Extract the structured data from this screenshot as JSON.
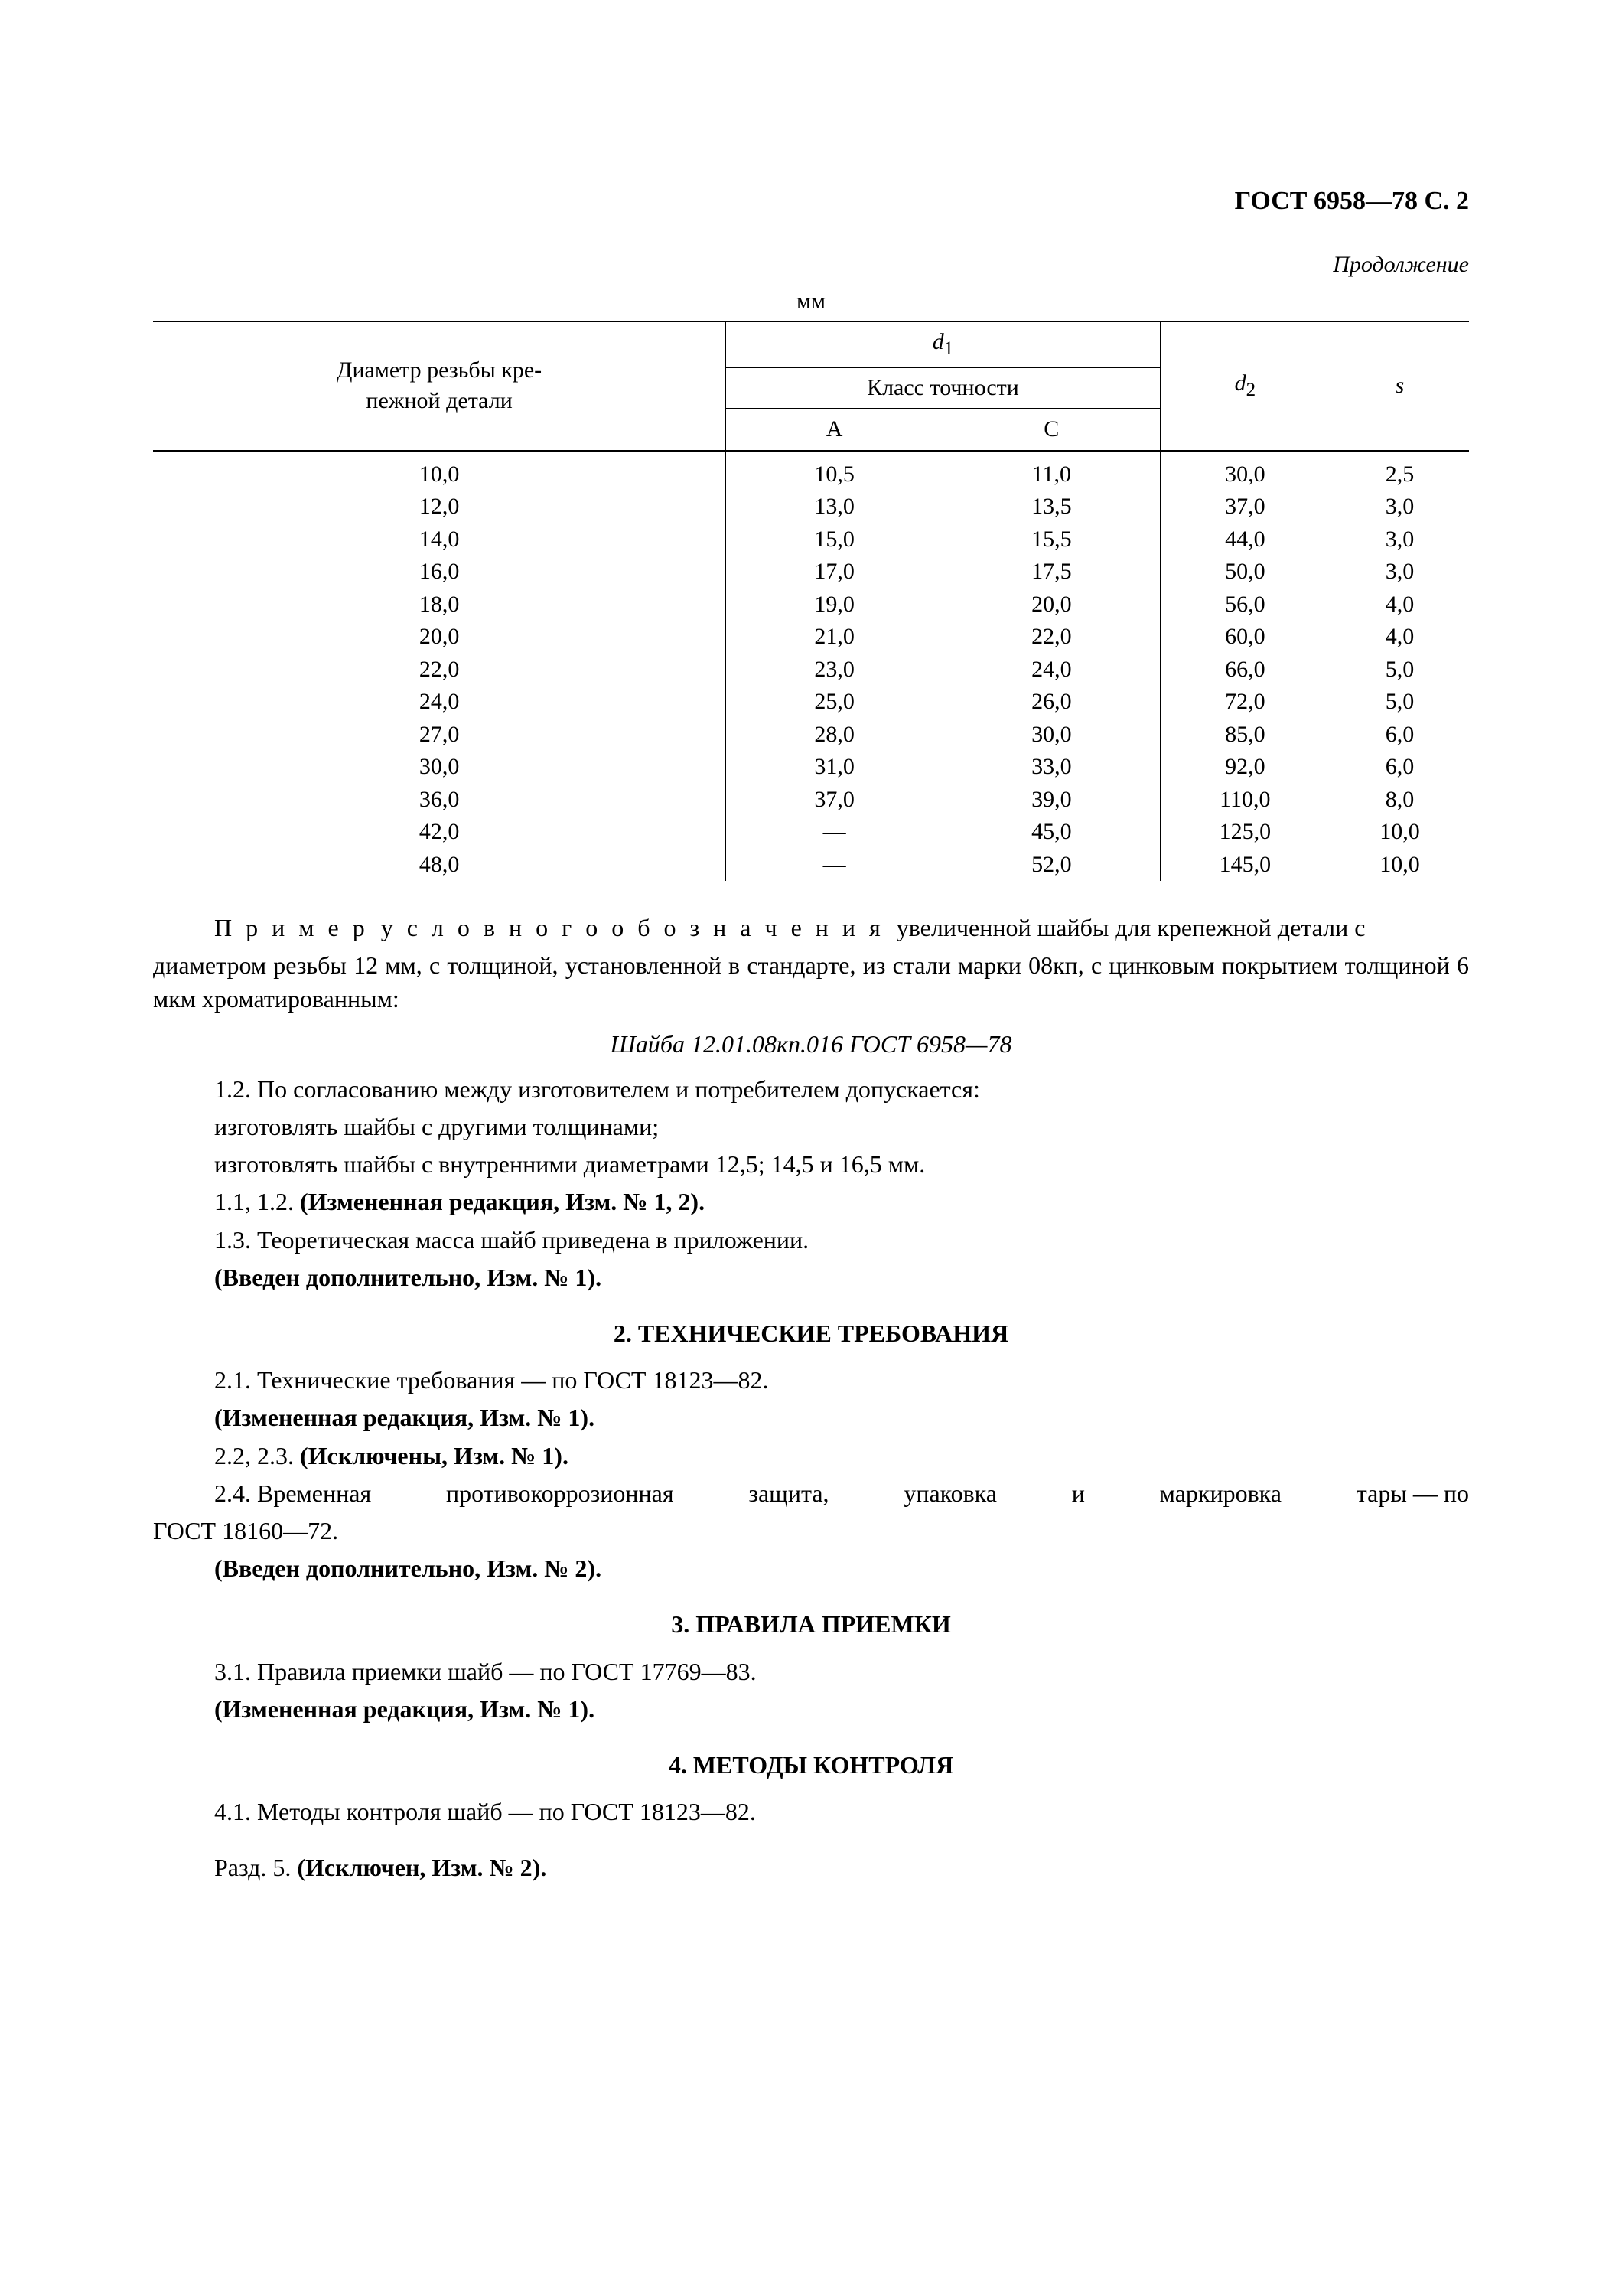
{
  "header": "ГОСТ 6958—78 С. 2",
  "continuation_label": "Продолжение",
  "table": {
    "unit": "мм",
    "col_diameter_1": "Диаметр резьбы кре-",
    "col_diameter_2": "пежной детали",
    "col_d1": "d",
    "col_d1_sub": "1",
    "col_d2": "d",
    "col_d2_sub": "2",
    "col_s": "s",
    "col_class": "Класс точности",
    "col_A": "А",
    "col_C": "С",
    "rows": [
      {
        "diam": "10,0",
        "a": "10,5",
        "c": "11,0",
        "d2": "30,0",
        "s": "2,5"
      },
      {
        "diam": "12,0",
        "a": "13,0",
        "c": "13,5",
        "d2": "37,0",
        "s": "3,0"
      },
      {
        "diam": "14,0",
        "a": "15,0",
        "c": "15,5",
        "d2": "44,0",
        "s": "3,0"
      },
      {
        "diam": "16,0",
        "a": "17,0",
        "c": "17,5",
        "d2": "50,0",
        "s": "3,0"
      },
      {
        "diam": "18,0",
        "a": "19,0",
        "c": "20,0",
        "d2": "56,0",
        "s": "4,0"
      },
      {
        "diam": "20,0",
        "a": "21,0",
        "c": "22,0",
        "d2": "60,0",
        "s": "4,0"
      },
      {
        "diam": "22,0",
        "a": "23,0",
        "c": "24,0",
        "d2": "66,0",
        "s": "5,0"
      },
      {
        "diam": "24,0",
        "a": "25,0",
        "c": "26,0",
        "d2": "72,0",
        "s": "5,0"
      },
      {
        "diam": "27,0",
        "a": "28,0",
        "c": "30,0",
        "d2": "85,0",
        "s": "6,0"
      },
      {
        "diam": "30,0",
        "a": "31,0",
        "c": "33,0",
        "d2": "92,0",
        "s": "6,0"
      },
      {
        "diam": "36,0",
        "a": "37,0",
        "c": "39,0",
        "d2": "110,0",
        "s": "8,0"
      },
      {
        "diam": "42,0",
        "a": "—",
        "c": "45,0",
        "d2": "125,0",
        "s": "10,0"
      },
      {
        "diam": "48,0",
        "a": "—",
        "c": "52,0",
        "d2": "145,0",
        "s": "10,0"
      }
    ]
  },
  "body": {
    "example_word": "П р и м е р",
    "designation_word": "у с л о в н о г о   о б о з н а ч е н и я",
    "example_rest1": "увеличенной шайбы для крепежной детали с",
    "example_line2": "диаметром резьбы 12 мм, с толщиной, установленной в стандарте, из стали марки 08кп, с цинковым покрытием толщиной 6 мкм хроматированным:",
    "example_designation": "Шайба 12.01.08кп.016 ГОСТ 6958—78",
    "p1_2_line1": "1.2. По согласованию между изготовителем и потребителем допускается:",
    "p1_2_line2": "изготовлять шайбы с другими толщинами;",
    "p1_2_line3": "изготовлять шайбы с внутренними диаметрами 12,5; 14,5 и 16,5 мм.",
    "p1_1_1_2_prefix": "1.1, 1.2. ",
    "p1_1_1_2_bold": "(Измененная редакция, Изм. № 1, 2).",
    "p1_3": "1.3. Теоретическая масса шайб приведена в приложении.",
    "p1_3_bold": "(Введен дополнительно, Изм. № 1).",
    "section2_title": "2. ТЕХНИЧЕСКИЕ ТРЕБОВАНИЯ",
    "p2_1": "2.1. Технические требования — по ГОСТ 18123—82.",
    "p2_1_bold": "(Измененная редакция, Изм. № 1).",
    "p2_2_3_prefix": "2.2, 2.3. ",
    "p2_2_3_bold": "(Исключены, Изм. № 1).",
    "p2_4_pre": "2.4. Временная",
    "p2_4_w1": "противокоррозионная",
    "p2_4_w2": "защита,",
    "p2_4_w3": "упаковка",
    "p2_4_w4": "и",
    "p2_4_w5": "маркировка",
    "p2_4_w6": "тары — по",
    "p2_4_line2": "ГОСТ 18160—72.",
    "p2_4_bold": "(Введен дополнительно, Изм. № 2).",
    "section3_title": "3. ПРАВИЛА ПРИЕМКИ",
    "p3_1": "3.1. Правила приемки шайб — по ГОСТ 17769—83.",
    "p3_1_bold": "(Измененная редакция, Изм. № 1).",
    "section4_title": "4. МЕТОДЫ КОНТРОЛЯ",
    "p4_1": "4.1. Методы контроля шайб — по ГОСТ 18123—82.",
    "p5_prefix": "Разд. 5. ",
    "p5_bold": "(Исключен, Изм. № 2)."
  }
}
